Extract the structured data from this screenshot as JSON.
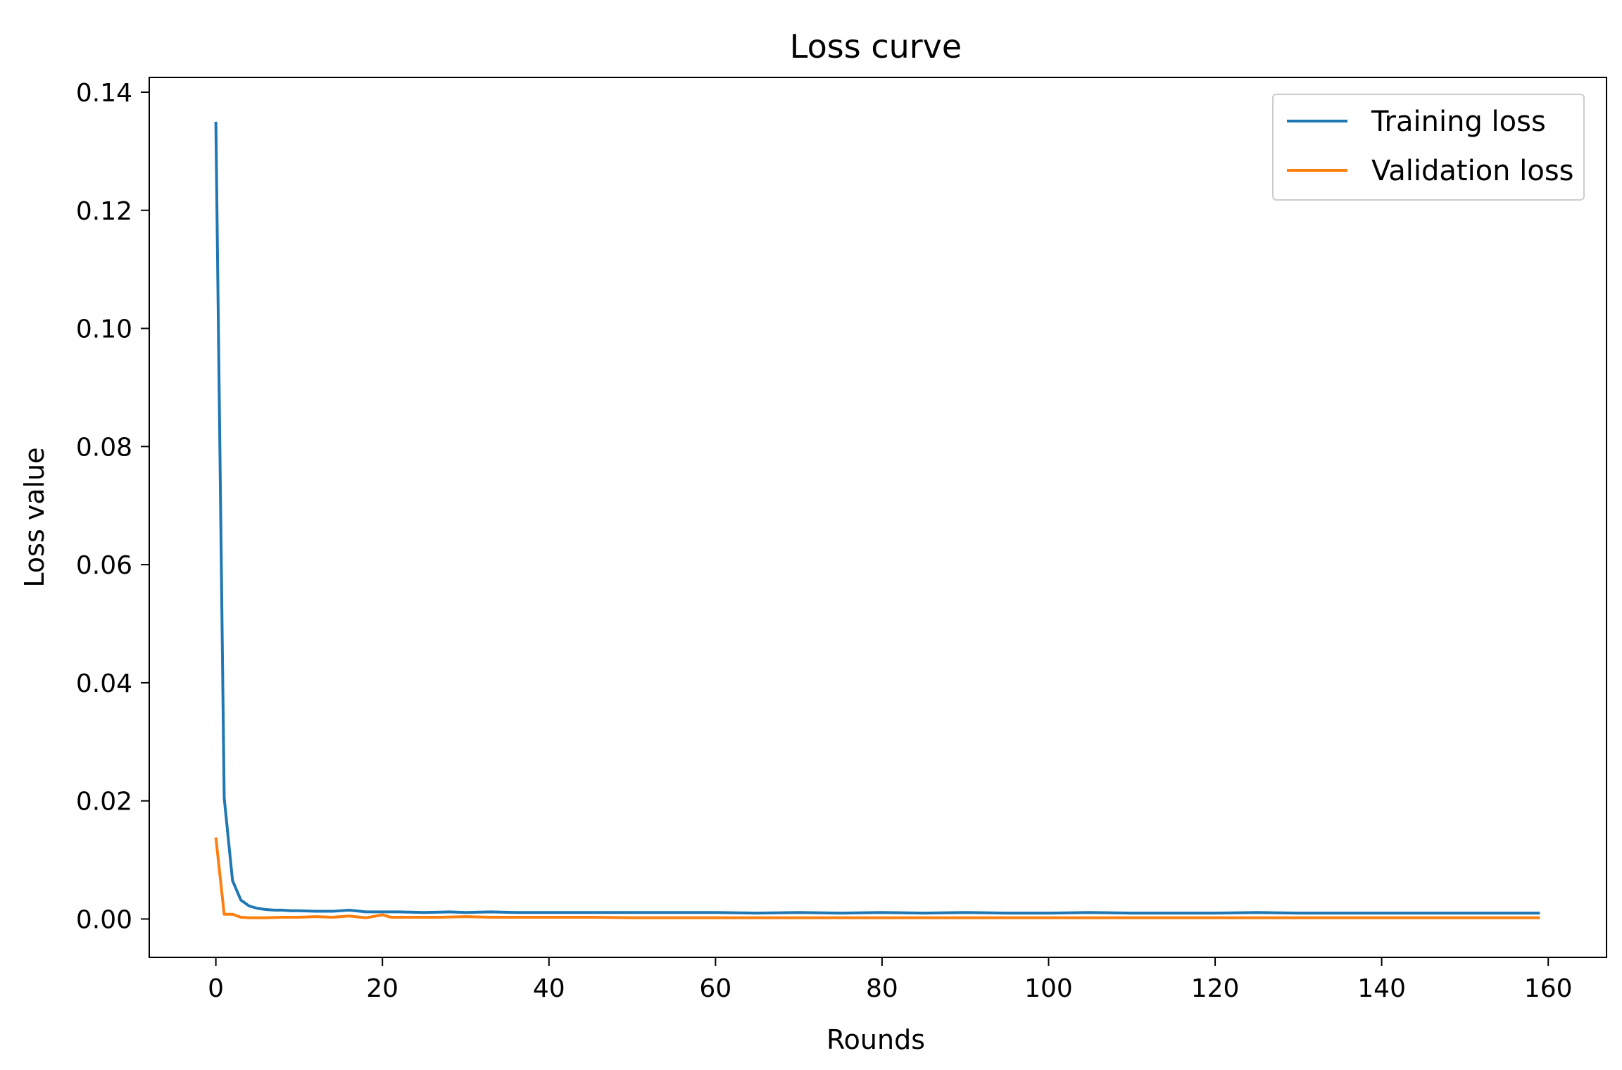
{
  "chart_data": {
    "type": "line",
    "title": "Loss curve",
    "xlabel": "Rounds",
    "ylabel": "Loss value",
    "xlim": [
      -8,
      167
    ],
    "ylim": [
      -0.0065,
      0.1425
    ],
    "xticks": [
      0,
      20,
      40,
      60,
      80,
      100,
      120,
      140,
      160
    ],
    "xtick_labels": [
      "0",
      "20",
      "40",
      "60",
      "80",
      "100",
      "120",
      "140",
      "160"
    ],
    "yticks": [
      0.0,
      0.02,
      0.04,
      0.06,
      0.08,
      0.1,
      0.12,
      0.14
    ],
    "ytick_labels": [
      "0.00",
      "0.02",
      "0.04",
      "0.06",
      "0.08",
      "0.10",
      "0.12",
      "0.14"
    ],
    "grid": false,
    "legend_position": "top-right",
    "series": [
      {
        "name": "Training loss",
        "color": "#1f77b4",
        "x": [
          0,
          1,
          2,
          3,
          4,
          5,
          6,
          7,
          8,
          9,
          10,
          12,
          14,
          16,
          18,
          20,
          22,
          25,
          28,
          30,
          33,
          36,
          40,
          45,
          50,
          55,
          60,
          65,
          70,
          75,
          80,
          85,
          90,
          95,
          100,
          105,
          110,
          115,
          120,
          125,
          130,
          135,
          140,
          145,
          150,
          155,
          159
        ],
        "y": [
          0.135,
          0.0205,
          0.0065,
          0.0032,
          0.0022,
          0.0018,
          0.0016,
          0.0015,
          0.0015,
          0.0014,
          0.0014,
          0.0013,
          0.0013,
          0.0015,
          0.0012,
          0.0012,
          0.0012,
          0.0011,
          0.0012,
          0.0011,
          0.0012,
          0.0011,
          0.0011,
          0.0011,
          0.0011,
          0.0011,
          0.0011,
          0.001,
          0.0011,
          0.001,
          0.0011,
          0.001,
          0.0011,
          0.001,
          0.001,
          0.0011,
          0.001,
          0.001,
          0.001,
          0.0011,
          0.001,
          0.001,
          0.001,
          0.001,
          0.001,
          0.001,
          0.001
        ]
      },
      {
        "name": "Validation loss",
        "color": "#ff7f0e",
        "x": [
          0,
          1,
          2,
          3,
          4,
          5,
          6,
          8,
          10,
          12,
          14,
          16,
          18,
          20,
          21,
          24,
          27,
          30,
          33,
          36,
          40,
          45,
          50,
          60,
          70,
          80,
          90,
          100,
          110,
          120,
          130,
          140,
          150,
          159
        ],
        "y": [
          0.0138,
          0.0008,
          0.0008,
          0.0003,
          0.0002,
          0.0002,
          0.0002,
          0.0003,
          0.0003,
          0.0004,
          0.0003,
          0.0005,
          0.0002,
          0.0007,
          0.0003,
          0.0003,
          0.0003,
          0.0004,
          0.0003,
          0.0003,
          0.0003,
          0.0003,
          0.0002,
          0.0002,
          0.0002,
          0.0002,
          0.0002,
          0.0002,
          0.0002,
          0.0002,
          0.0002,
          0.0002,
          0.0002,
          0.0002
        ]
      }
    ]
  }
}
